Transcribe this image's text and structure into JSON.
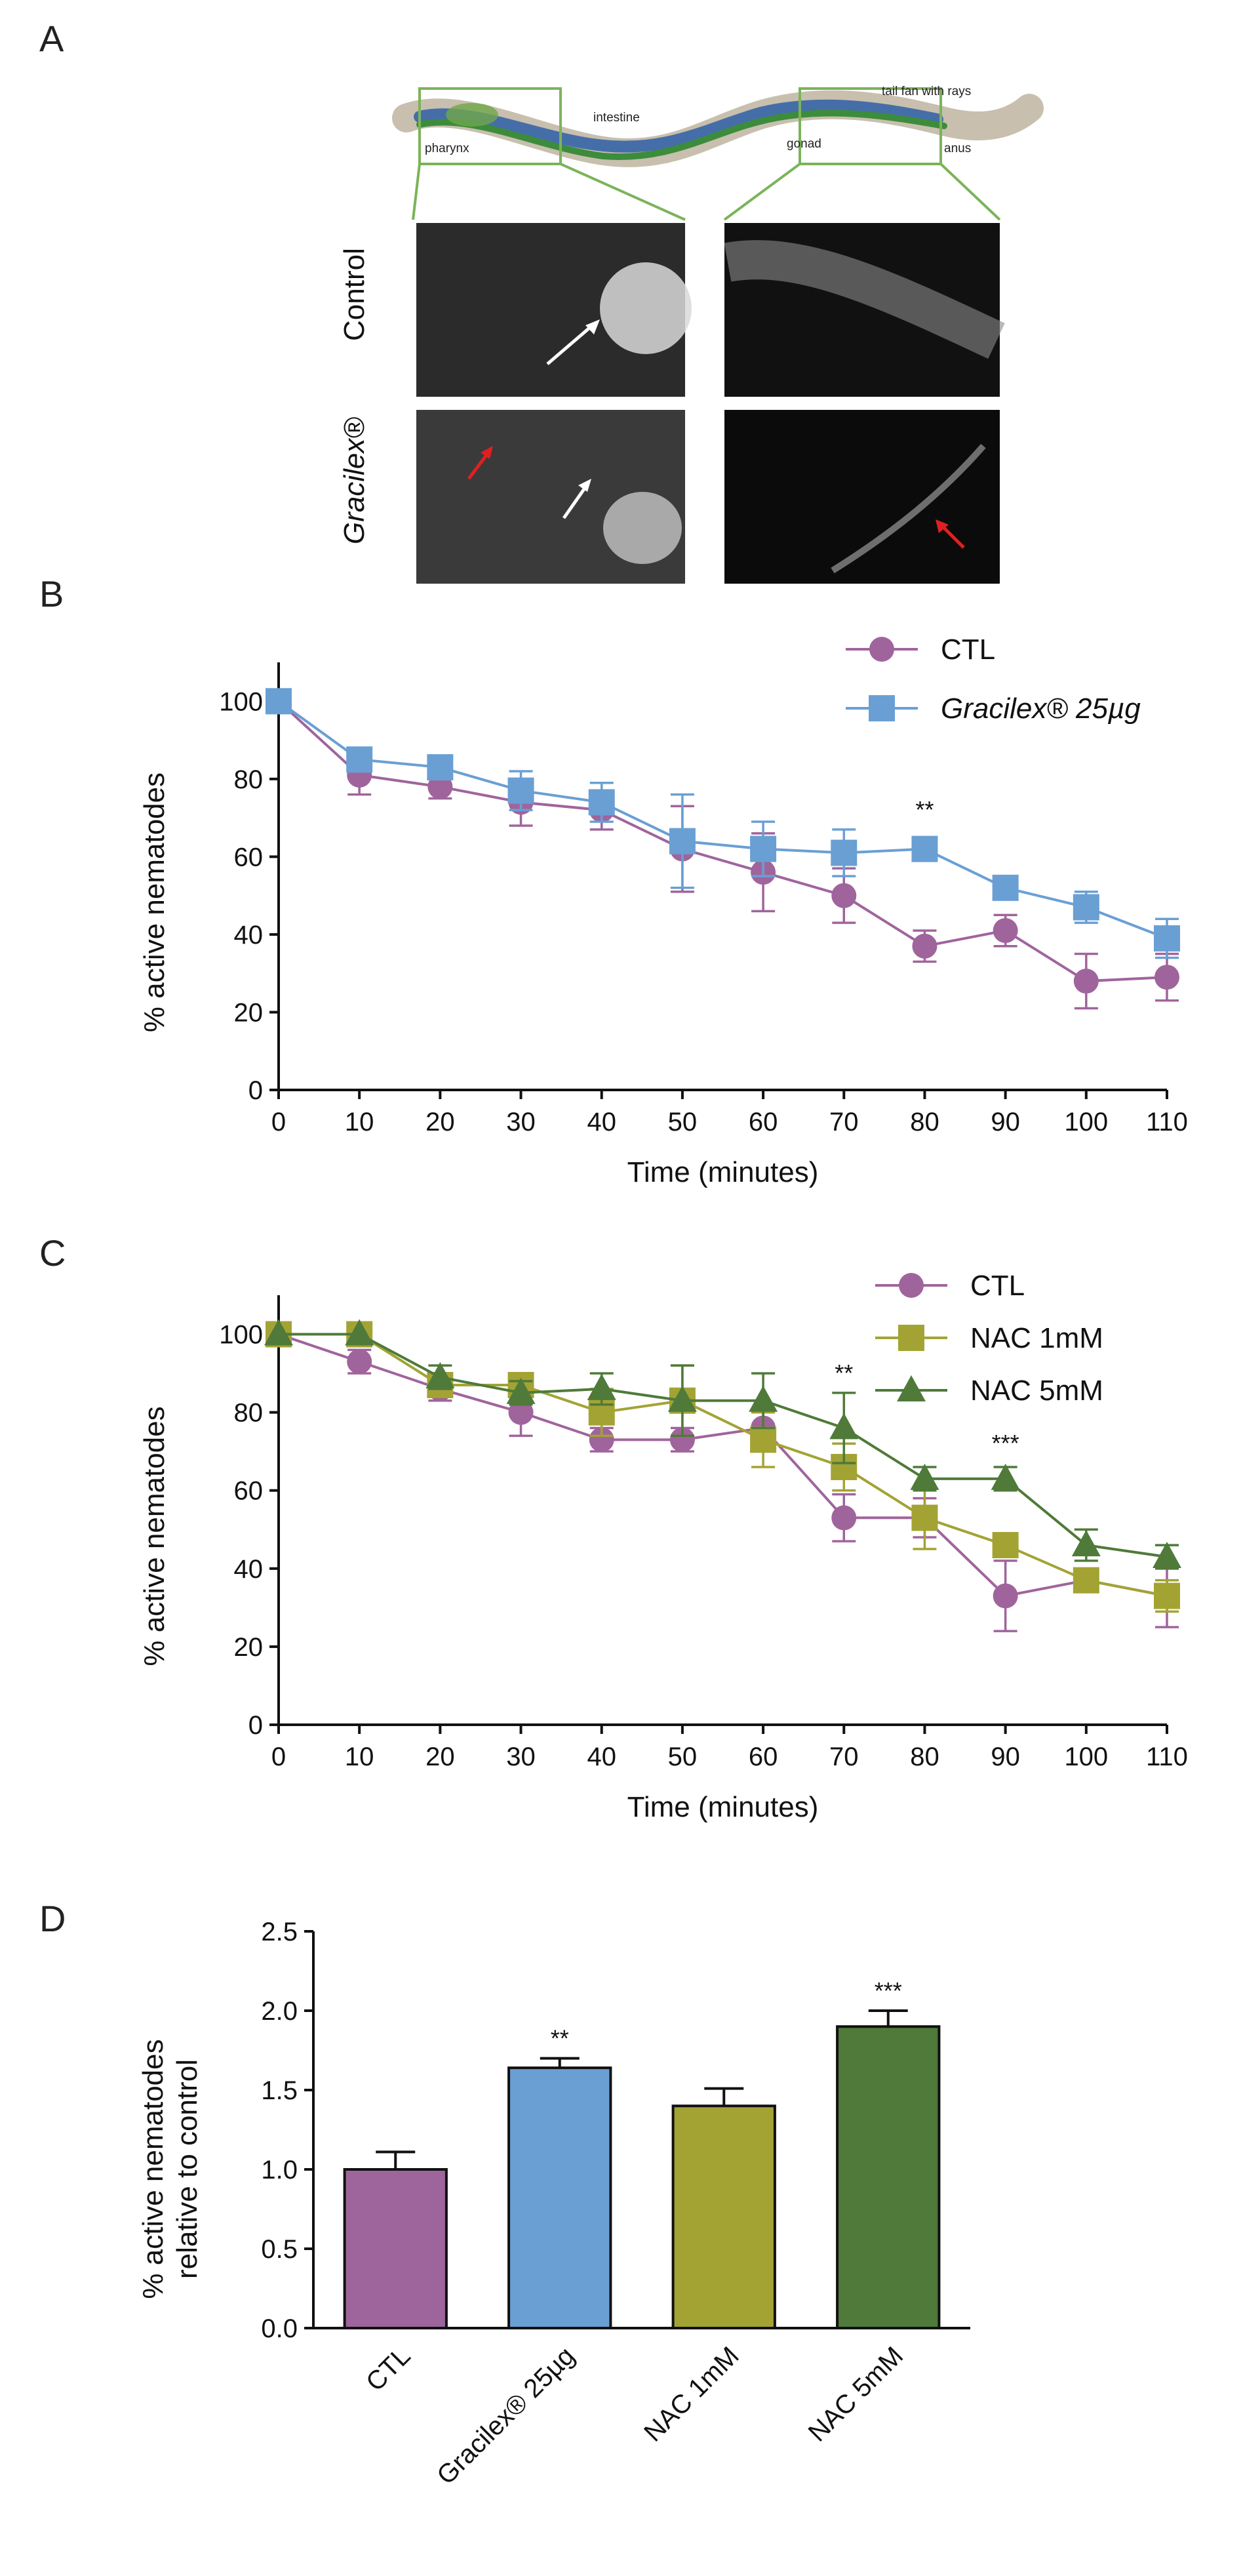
{
  "panels": [
    "A",
    "B",
    "C",
    "D"
  ],
  "panel_a": {
    "diagram_labels": [
      "pharynx",
      "intestine",
      "gonad",
      "anus",
      "tail fan with rays"
    ],
    "row_labels": [
      "Control",
      "Gracilex®"
    ]
  },
  "chart_data": [
    {
      "type": "line",
      "panel": "B",
      "xlabel": "Time (minutes)",
      "ylabel": "% active nematodes",
      "x": [
        0,
        10,
        20,
        30,
        40,
        50,
        60,
        70,
        80,
        90,
        100,
        110
      ],
      "xlim": [
        0,
        110
      ],
      "ylim": [
        0,
        110
      ],
      "yticks": [
        0,
        20,
        40,
        60,
        80,
        100
      ],
      "series": [
        {
          "name": "CTL",
          "marker": "circle",
          "color": "#a0649c",
          "values": [
            100,
            81,
            78,
            74,
            72,
            62,
            56,
            50,
            37,
            41,
            28,
            29
          ],
          "errors": [
            0,
            5,
            3,
            6,
            5,
            11,
            10,
            7,
            4,
            4,
            7,
            6
          ]
        },
        {
          "name": "Gracilex® 25µg",
          "marker": "square",
          "color": "#6a9fd4",
          "values": [
            100,
            85,
            83,
            77,
            74,
            64,
            62,
            61,
            62,
            52,
            47,
            39
          ],
          "errors": [
            0,
            2,
            2,
            5,
            5,
            12,
            7,
            6,
            2,
            3,
            4,
            5
          ]
        }
      ],
      "annotations": [
        {
          "x": 80,
          "y": 70,
          "text": "**"
        }
      ]
    },
    {
      "type": "line",
      "panel": "C",
      "xlabel": "Time (minutes)",
      "ylabel": "% active nematodes",
      "x": [
        0,
        10,
        20,
        30,
        40,
        50,
        60,
        70,
        80,
        90,
        100,
        110
      ],
      "xlim": [
        0,
        110
      ],
      "ylim": [
        0,
        110
      ],
      "yticks": [
        0,
        20,
        40,
        60,
        80,
        100
      ],
      "series": [
        {
          "name": "CTL",
          "marker": "circle",
          "color": "#a0649c",
          "values": [
            100,
            93,
            86,
            80,
            73,
            73,
            76,
            53,
            53,
            33,
            37,
            33
          ],
          "errors": [
            0,
            3,
            3,
            6,
            3,
            3,
            4,
            6,
            5,
            9,
            3,
            8
          ]
        },
        {
          "name": "NAC 1mM",
          "marker": "square",
          "color": "#a3a334",
          "values": [
            100,
            100,
            87,
            87,
            80,
            83,
            73,
            66,
            53,
            46,
            37,
            33
          ],
          "errors": [
            0,
            0,
            3,
            3,
            6,
            9,
            7,
            6,
            8,
            3,
            3,
            4
          ]
        },
        {
          "name": "NAC 5mM",
          "marker": "triangle",
          "color": "#4f7a3a",
          "values": [
            100,
            100,
            89,
            85,
            86,
            83,
            83,
            76,
            63,
            63,
            46,
            43
          ],
          "errors": [
            0,
            0,
            3,
            3,
            4,
            9,
            7,
            9,
            3,
            3,
            4,
            3
          ]
        }
      ],
      "annotations": [
        {
          "x": 70,
          "y": 88,
          "text": "**"
        },
        {
          "x": 90,
          "y": 70,
          "text": "***"
        }
      ]
    },
    {
      "type": "bar",
      "panel": "D",
      "ylabel": "% active nematodes relative to control",
      "ylabel_lines": [
        "% active nematodes",
        "relative to control"
      ],
      "categories": [
        "CTL",
        "Gracilex® 25µg",
        "NAC 1mM",
        "NAC 5mM"
      ],
      "values": [
        1.0,
        1.64,
        1.4,
        1.9
      ],
      "errors": [
        0.11,
        0.06,
        0.11,
        0.1
      ],
      "colors": [
        "#9e649c",
        "#6a9fd4",
        "#a3a334",
        "#4f7a3a"
      ],
      "ylim": [
        0,
        2.5
      ],
      "yticks": [
        0.0,
        0.5,
        1.0,
        1.5,
        2.0,
        2.5
      ],
      "annotations": [
        "",
        "**",
        "",
        "***"
      ]
    }
  ]
}
